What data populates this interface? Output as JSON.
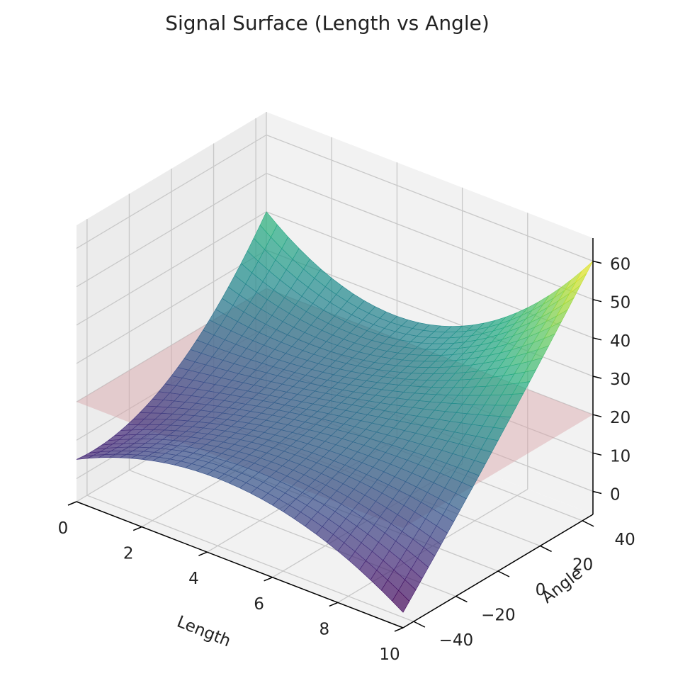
{
  "chart_data": {
    "type": "surface3d",
    "title": "Signal Surface (Length vs Angle)",
    "xlabel": "Length",
    "ylabel": "Angle",
    "zlabel": "",
    "x_ticks": [
      "0",
      "2",
      "4",
      "6",
      "8",
      "10"
    ],
    "y_ticks": [
      "−40",
      "−20",
      "0",
      "20",
      "40"
    ],
    "z_ticks": [
      "0",
      "10",
      "20",
      "30",
      "40",
      "50",
      "60"
    ],
    "xlim": [
      0,
      10
    ],
    "ylim": [
      -45,
      45
    ],
    "zlim": [
      -6,
      66
    ],
    "grid": true,
    "colormap": "viridis",
    "reference_plane": {
      "z": 20,
      "color": "#d9a5a9"
    },
    "surface_samples": {
      "x": [
        0,
        5,
        10
      ],
      "y": [
        -45,
        0,
        45
      ],
      "z": [
        [
          5,
          12,
          40
        ],
        [
          14,
          20,
          27
        ],
        [
          -2,
          28,
          60
        ]
      ]
    }
  }
}
